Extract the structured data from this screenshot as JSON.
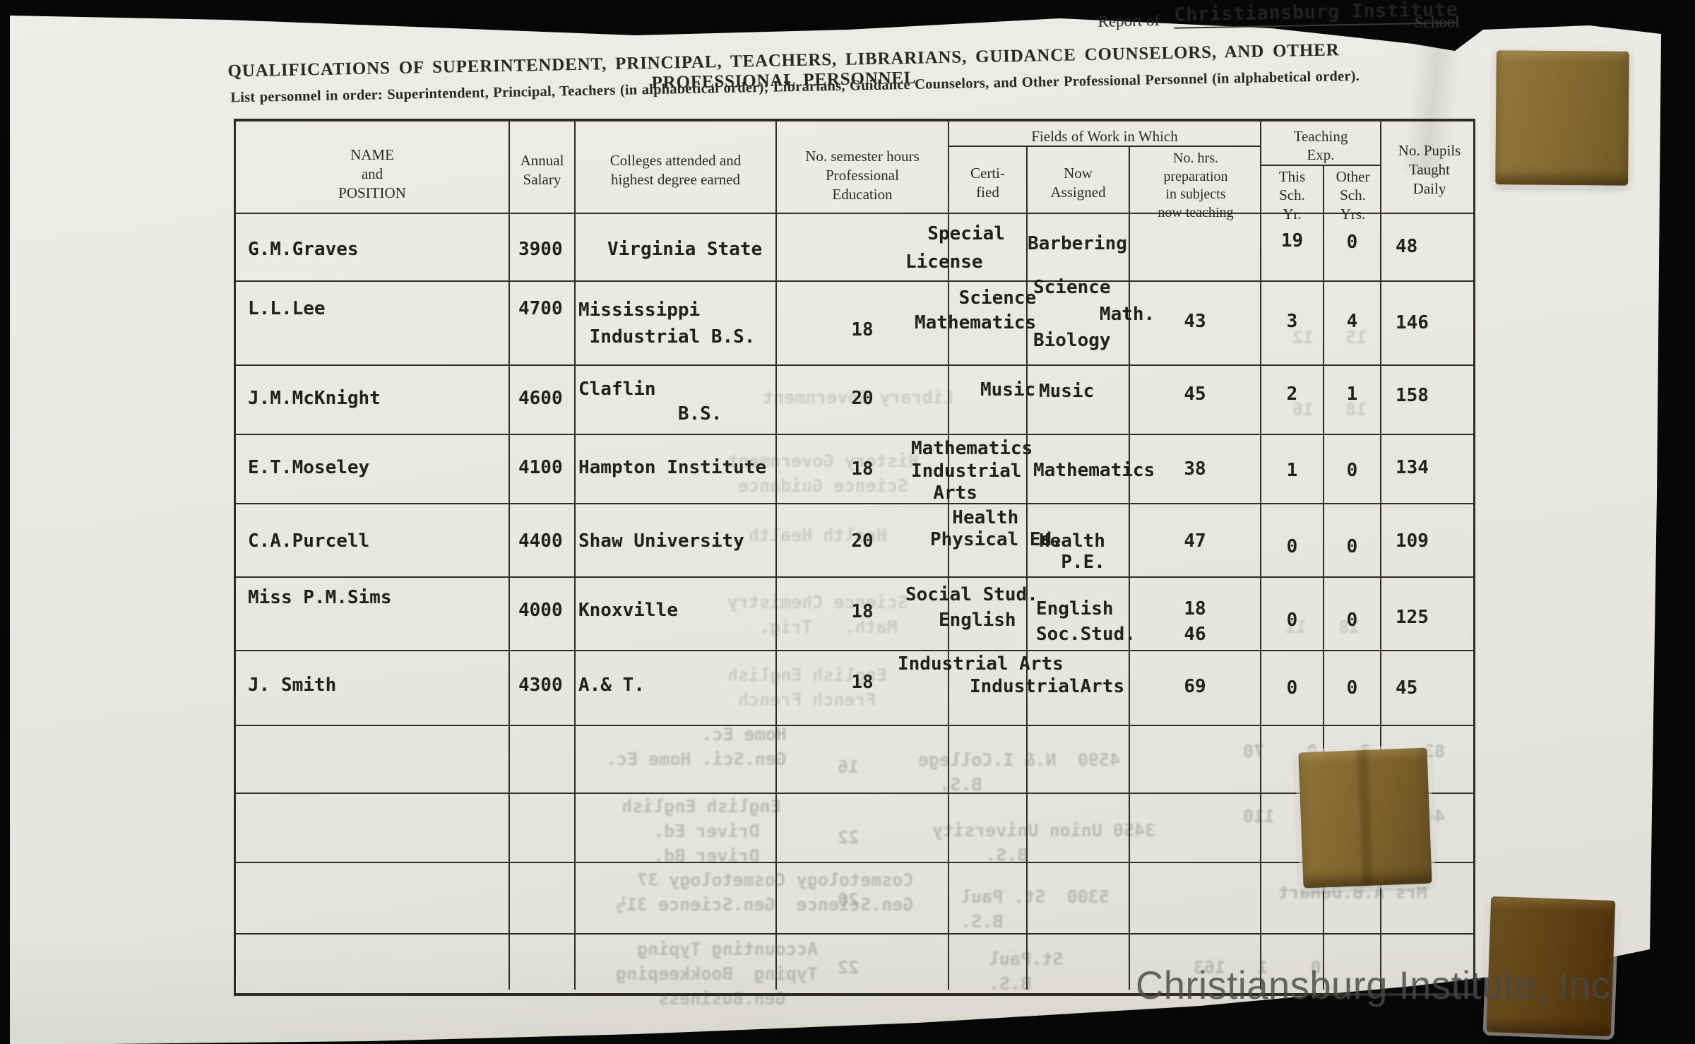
{
  "report_line": {
    "prefix": "Report of",
    "school_name_typed": "Christiansburg Institute",
    "printed_suffix": "School"
  },
  "title": "QUALIFICATIONS OF SUPERINTENDENT, PRINCIPAL, TEACHERS, LIBRARIANS, GUIDANCE COUNSELORS, AND OTHER PROFESSIONAL PERSONNEL",
  "instructions": "List personnel in order: Superintendent, Principal, Teachers (in alphabetical order); Librarians, Guidance Counselors, and Other Professional Personnel (in alphabetical order).",
  "table": {
    "header": {
      "name": "NAME\nand\nPOSITION",
      "salary": "Annual\nSalary",
      "college": "Colleges attended and\nhighest degree earned",
      "semester_hours": "No. semester hours\nProfessional\nEducation",
      "fields_group": "Fields of Work in Which",
      "certified": "Certi-\nfied",
      "assigned": "Now\nAssigned",
      "prep_hours": "No. hrs.\npreparation\nin subjects\nnow teaching",
      "teaching_group": "Teaching\nExp.",
      "this_year": "This\nSch.\nYr.",
      "other_years": "Other\nSch.\nYrs.",
      "pupils": "No. Pupils\nTaught\nDaily"
    },
    "rows": [
      {
        "name": "G.M.Graves",
        "salary": "3900",
        "college": "Virginia State",
        "semester_hours": "",
        "certified_in": "  Special\nLicense",
        "now_assigned": "Barbering",
        "prep_hours": "",
        "exp_this_school_yr": "19",
        "exp_other_school_yrs": "0",
        "pupils_daily": "48"
      },
      {
        "name": "L.L.Lee",
        "salary": "4700",
        "college": "Mississippi\n Industrial B.S.",
        "semester_hours": "18",
        "certified_in": "    Science\nMathematics",
        "now_assigned": "Science\n      Math.\nBiology",
        "prep_hours": "43",
        "exp_this_school_yr": "3",
        "exp_other_school_yrs": "4",
        "pupils_daily": "146"
      },
      {
        "name": "J.M.McKnight",
        "salary": "4600",
        "college": "Claflin\n         B.S.",
        "semester_hours": "20",
        "certified_in": "Music",
        "now_assigned": "Music",
        "prep_hours": "45",
        "exp_this_school_yr": "2",
        "exp_other_school_yrs": "1",
        "pupils_daily": "158"
      },
      {
        "name": "E.T.Moseley",
        "salary": "4100",
        "college": "Hampton Institute",
        "semester_hours": "18",
        "certified_in": "Mathematics\nIndustrial\n  Arts",
        "now_assigned": "Mathematics",
        "prep_hours": "38",
        "exp_this_school_yr": "1",
        "exp_other_school_yrs": "0",
        "pupils_daily": "134"
      },
      {
        "name": "C.A.Purcell",
        "salary": "4400",
        "college": "Shaw University",
        "semester_hours": "20",
        "certified_in": "  Health\nPhysical Ed.",
        "now_assigned": "Health\n  P.E.",
        "prep_hours": "47",
        "exp_this_school_yr": "0",
        "exp_other_school_yrs": "0",
        "pupils_daily": "109"
      },
      {
        "name": "Miss P.M.Sims",
        "salary": "4000",
        "college": "Knoxville",
        "semester_hours": "18",
        "certified_in": "Social Stud.\n   English",
        "now_assigned": "English\nSoc.Stud.",
        "prep_hours": "18\n46",
        "exp_this_school_yr": "0",
        "exp_other_school_yrs": "0",
        "pupils_daily": "125"
      },
      {
        "name": "J. Smith",
        "salary": "4300",
        "college": "A.& T.",
        "semester_hours": "18",
        "certified_in": "Industrial Arts",
        "now_assigned": "IndustrialArts",
        "prep_hours": "69",
        "exp_this_school_yr": "0",
        "exp_other_school_yrs": "0",
        "pupils_daily": "45"
      }
    ],
    "empty_row_count": 4
  },
  "ghost_bleed_through": [
    "Home Ec.\nGen.Sci. Home Ec.",
    "4590  N.& I.College\n             B.S.",
    "16",
    "83     3    0    70",
    "English English\n  Driver Ed.\n  Driver Bd.",
    "3450 Union University\n            B.S.",
    "22",
    "44    11   2½   110",
    "Cosmetology Cosmetology 37\nGen.Science  Gen.Science 31½",
    "5300  St. Paul\n          B.S.",
    "20",
    "Mrs A.B.DeHart",
    "Accounting Typing\nTyping  Bookkeeping\n   Gen.Business",
    "St.Paul\n   B.S.",
    "22",
    "0    1   163",
    "Library Government",
    "History Government\n Science Guidance",
    "Health Health",
    "Science Chemistry\n Math.   Trig.",
    "English English\n French French",
    "15   12",
    "18   16",
    "18   11"
  ],
  "watermark": "Christiansburg Institute, Inc",
  "colors": {
    "paper": "#e9e8e3",
    "ink": "#23211c",
    "print_ink": "#2c2a25",
    "brass": "#866c31",
    "brass_dark": "#5c3f12",
    "background": "#070707",
    "watermark_gray": "#484848"
  }
}
